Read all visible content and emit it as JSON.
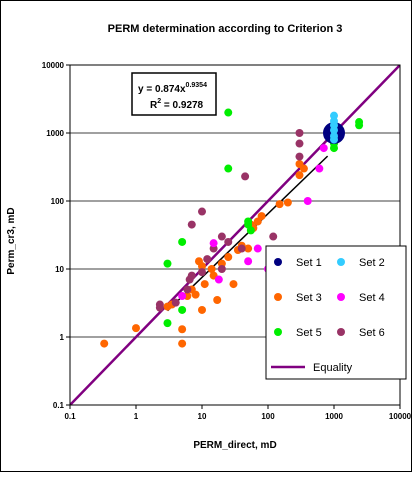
{
  "chart_data": {
    "type": "scatter",
    "title": "PERM determination according to Criterion 3",
    "xlabel": "PERM_direct, mD",
    "ylabel": "Perm_cr3, mD",
    "xscale": "log",
    "yscale": "log",
    "xlim": [
      0.1,
      10000
    ],
    "ylim": [
      0.1,
      10000
    ],
    "xticks": [
      "0.1",
      "1",
      "10",
      "100",
      "1000",
      "10000"
    ],
    "yticks": [
      "0.1",
      "1",
      "10",
      "100",
      "1000",
      "10000"
    ],
    "grid": "horizontal major gridlines",
    "legend_position": "lower-right, inside plot area",
    "equation": {
      "line1": "y = 0.874x",
      "exponent": "0.9354",
      "r2_prefix": "R",
      "r2_exp": "2",
      "r2_rest": " = 0.9278"
    },
    "series": [
      {
        "name": "Set 1",
        "color": "#000080",
        "marker": "circle-large",
        "points": [
          [
            1000,
            1000
          ]
        ]
      },
      {
        "name": "Set 2",
        "color": "#33ccff",
        "marker": "circle",
        "points": [
          [
            1000,
            1800
          ],
          [
            1000,
            1500
          ],
          [
            1000,
            1300
          ],
          [
            1000,
            1100
          ],
          [
            1000,
            900
          ],
          [
            1000,
            800
          ]
        ]
      },
      {
        "name": "Set 3",
        "color": "#ff6600",
        "marker": "circle",
        "points": [
          [
            0.33,
            0.8
          ],
          [
            1,
            1.35
          ],
          [
            3,
            2.8
          ],
          [
            3.5,
            3
          ],
          [
            5,
            1.3
          ],
          [
            5,
            0.8
          ],
          [
            6,
            4
          ],
          [
            7,
            5
          ],
          [
            8,
            4.2
          ],
          [
            9,
            13
          ],
          [
            10,
            11
          ],
          [
            10,
            2.5
          ],
          [
            11,
            6
          ],
          [
            14,
            10
          ],
          [
            15,
            8
          ],
          [
            17,
            3.5
          ],
          [
            20,
            12
          ],
          [
            25,
            15
          ],
          [
            30,
            6
          ],
          [
            35,
            19
          ],
          [
            40,
            22
          ],
          [
            50,
            20
          ],
          [
            55,
            45
          ],
          [
            60,
            40
          ],
          [
            70,
            50
          ],
          [
            80,
            60
          ],
          [
            150,
            90
          ],
          [
            200,
            95
          ],
          [
            300,
            240
          ],
          [
            300,
            350
          ],
          [
            350,
            300
          ]
        ]
      },
      {
        "name": "Set 4",
        "color": "#ff00ff",
        "marker": "circle",
        "points": [
          [
            5,
            4
          ],
          [
            15,
            24
          ],
          [
            18,
            7
          ],
          [
            50,
            13
          ],
          [
            70,
            20
          ],
          [
            100,
            10
          ],
          [
            400,
            100
          ],
          [
            600,
            300
          ],
          [
            700,
            600
          ]
        ]
      },
      {
        "name": "Set 5",
        "color": "#00ee00",
        "marker": "circle",
        "points": [
          [
            3,
            12
          ],
          [
            3,
            1.6
          ],
          [
            5,
            25
          ],
          [
            5,
            2.5
          ],
          [
            25,
            2000
          ],
          [
            25,
            300
          ],
          [
            50,
            50
          ],
          [
            50,
            45
          ],
          [
            55,
            37
          ],
          [
            1000,
            700
          ],
          [
            1000,
            600
          ],
          [
            2400,
            1300
          ],
          [
            2400,
            1450
          ]
        ]
      },
      {
        "name": "Set 6",
        "color": "#993366",
        "marker": "circle",
        "points": [
          [
            2.3,
            3
          ],
          [
            2.3,
            2.7
          ],
          [
            4,
            3.2
          ],
          [
            6,
            5
          ],
          [
            6.5,
            7
          ],
          [
            7,
            8
          ],
          [
            7,
            45
          ],
          [
            10,
            70
          ],
          [
            10,
            9
          ],
          [
            12,
            14
          ],
          [
            15,
            20
          ],
          [
            20,
            10
          ],
          [
            20,
            30
          ],
          [
            25,
            25
          ],
          [
            40,
            20
          ],
          [
            45,
            230
          ],
          [
            120,
            30
          ],
          [
            300,
            450
          ],
          [
            300,
            1000
          ],
          [
            300,
            700
          ]
        ]
      }
    ],
    "lines": [
      {
        "name": "Equality",
        "color": "#800080",
        "x": [
          0.1,
          10000
        ],
        "y": [
          0.1,
          10000
        ]
      },
      {
        "name": "",
        "color": "#000000",
        "x": [
          3,
          800
        ],
        "y": [
          2.44,
          457
        ]
      }
    ]
  }
}
